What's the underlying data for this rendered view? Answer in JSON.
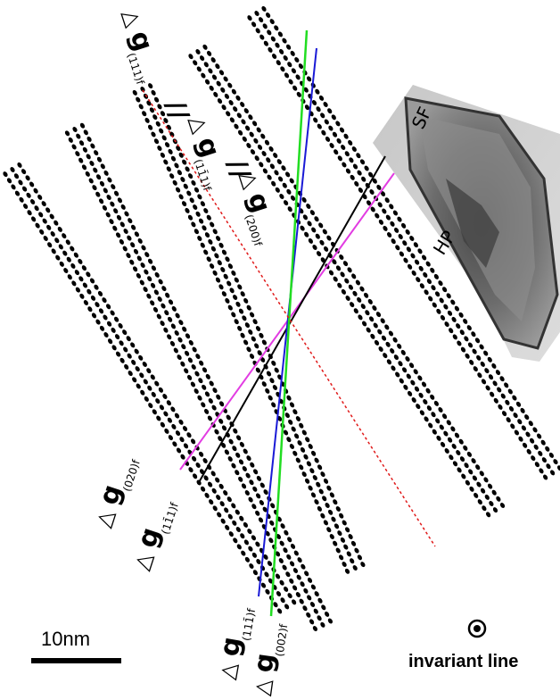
{
  "labels": {
    "g_111_f": {
      "tri": "△",
      "g": "g",
      "sub": "(111)f"
    },
    "par1": "//",
    "g_11_1bar_f": {
      "tri": "△",
      "g": "g",
      "sub": "(11̄1)f"
    },
    "par2": "//",
    "g_200_f": {
      "tri": "△",
      "g": "g",
      "sub": "(200)f"
    },
    "g_020_f": {
      "tri": "△",
      "g": "g",
      "sub": "(020)f"
    },
    "g_1_1bar_1_f": {
      "tri": "△",
      "g": "g",
      "sub": "(11̄1)f"
    },
    "g_1_1_1bar_f": {
      "tri": "△",
      "g": "g",
      "sub": "(111̄)f"
    },
    "g_002_f": {
      "tri": "△",
      "g": "g",
      "sub": "(002)f"
    }
  },
  "inset": {
    "sf": "SF",
    "hp": "HP"
  },
  "scale_bar": {
    "label": "10nm"
  },
  "invariant_line": {
    "label": "invariant line",
    "symbol": "⊙"
  },
  "colors": {
    "green": "#22dd22",
    "blue": "#1a1ad6",
    "red": "#e01a1a",
    "magenta": "#e23ce2",
    "black": "#000000",
    "dots": "#000000"
  }
}
